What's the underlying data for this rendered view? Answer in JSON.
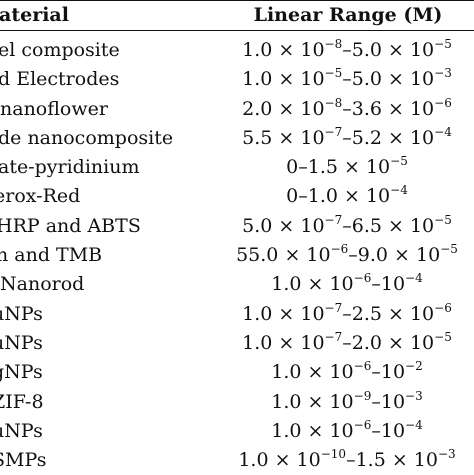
{
  "table": {
    "headers": {
      "material": "Material",
      "linear_range": "Linear Range (M)"
    },
    "rows": [
      {
        "material": "el composite",
        "range": "1.0 × 10^{−8}–5.0 × 10^{−5}",
        "indent": -2
      },
      {
        "material": "d Electrodes",
        "range": "1.0 × 10^{−5}–5.0 × 10^{−3}",
        "indent": -2
      },
      {
        "material": " nanoflower",
        "range": "2.0 × 10^{−8}–3.6 × 10^{−6}",
        "indent": 0
      },
      {
        "material": "de nanocomposite",
        "range": "5.5 × 10^{−7}–5.2 × 10^{−4}",
        "indent": -2
      },
      {
        "material": "ate-pyridinium",
        "range": "0–1.5 × 10^{−5}",
        "indent": -2
      },
      {
        "material": "erox-Red",
        "range": "0–1.0 × 10^{−4}",
        "indent": -6
      },
      {
        "material": "HRP and ABTS",
        "range": "5.0 × 10^{−7}–6.5 × 10^{−5}",
        "indent": -4
      },
      {
        "material": "n and TMB",
        "range": "55.0 × 10^{−6}–9.0 × 10^{−5}",
        "indent": -4
      },
      {
        "material": " Nanorod",
        "range": "1.0 × 10^{−6}–10^{−4}",
        "indent": 0
      },
      {
        "material": "uNPs",
        "range": "1.0 × 10^{−7}–2.5 × 10^{−6}",
        "indent": -8
      },
      {
        "material": "uNPs",
        "range": "1.0 × 10^{−7}–2.0 × 10^{−5}",
        "indent": -8
      },
      {
        "material": "gNPs",
        "range": "1.0 × 10^{−6}–10^{−2}",
        "indent": -8
      },
      {
        "material": "ZIF-8",
        "range": "1.0 × 10^{−9}–10^{−3}",
        "indent": -8
      },
      {
        "material": "uNPs",
        "range": "1.0 × 10^{−6}–10^{−4}",
        "indent": -8
      },
      {
        "material": "SMPs",
        "range": "1.0 × 10^{−10}–1.5 × 10^{−3}",
        "indent": -8
      }
    ]
  }
}
